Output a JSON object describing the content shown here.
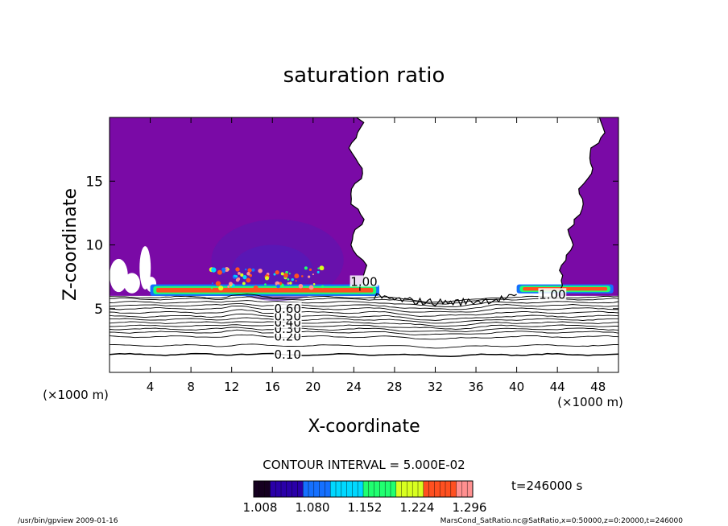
{
  "chart_data": {
    "type": "contour",
    "title": "saturation ratio",
    "xlabel": "X-coordinate",
    "ylabel": "Z-coordinate",
    "x_unit": "(×1000 m)",
    "y_unit": "(×1000 m)",
    "xlim": [
      0,
      50
    ],
    "ylim": [
      0,
      20
    ],
    "xticks": [
      4,
      8,
      12,
      16,
      20,
      24,
      28,
      32,
      36,
      40,
      44,
      48
    ],
    "yticks": [
      5,
      10,
      15
    ],
    "contour_interval_text": "CONTOUR INTERVAL = 5.000E-02",
    "time_text": "t=246000 s",
    "colorbar": {
      "tick_labels": [
        "1.008",
        "1.080",
        "1.152",
        "1.224",
        "1.296"
      ],
      "min": 1.008,
      "max": 1.296,
      "colors": [
        "#150020",
        "#2a00a8",
        "#1570ff",
        "#00d8ff",
        "#20ff70",
        "#d8ff20",
        "#ff5020",
        "#ff9090"
      ]
    },
    "fill_color": "#7a0aa6",
    "contour_labels": [
      {
        "text": "0.10",
        "x": 17.5,
        "y": 1.4
      },
      {
        "text": "0.20",
        "x": 17.5,
        "y": 2.8
      },
      {
        "text": "0.30",
        "x": 17.5,
        "y": 3.4
      },
      {
        "text": "0.40",
        "x": 17.5,
        "y": 3.9
      },
      {
        "text": "0.50",
        "x": 17.5,
        "y": 4.4
      },
      {
        "text": "0.60",
        "x": 17.5,
        "y": 5.0
      },
      {
        "text": "1.00",
        "x": 25.0,
        "y": 7.1
      },
      {
        "text": "1.00",
        "x": 43.5,
        "y": 6.1
      }
    ]
  },
  "footer": {
    "left": "/usr/bin/gpview   2009-01-16",
    "right": "MarsCond_SatRatio.nc@SatRatio,x=0:50000,z=0:20000,t=246000"
  }
}
